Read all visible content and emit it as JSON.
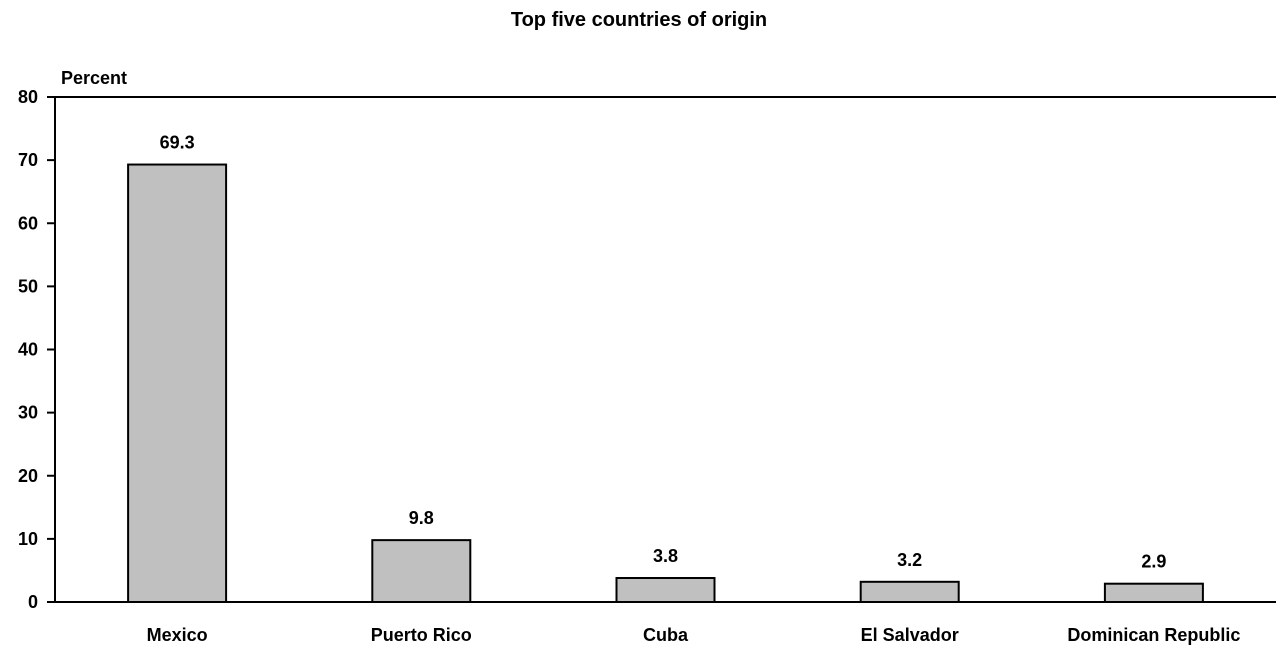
{
  "chart_data": {
    "type": "bar",
    "title": "Top five countries of origin",
    "ylabel": "Percent",
    "xlabel": "",
    "categories": [
      "Mexico",
      "Puerto Rico",
      "Cuba",
      "El Salvador",
      "Dominican Republic"
    ],
    "values": [
      69.3,
      9.8,
      3.8,
      3.2,
      2.9
    ],
    "data_labels": [
      "69.3",
      "9.8",
      "3.8",
      "3.2",
      "2.9"
    ],
    "ylim": [
      0,
      80
    ],
    "yticks": [
      0,
      10,
      20,
      30,
      40,
      50,
      60,
      70,
      80
    ],
    "grid": false,
    "legend": "none",
    "bar_color": "#c0c0c0",
    "bar_edge_color": "#000000"
  }
}
